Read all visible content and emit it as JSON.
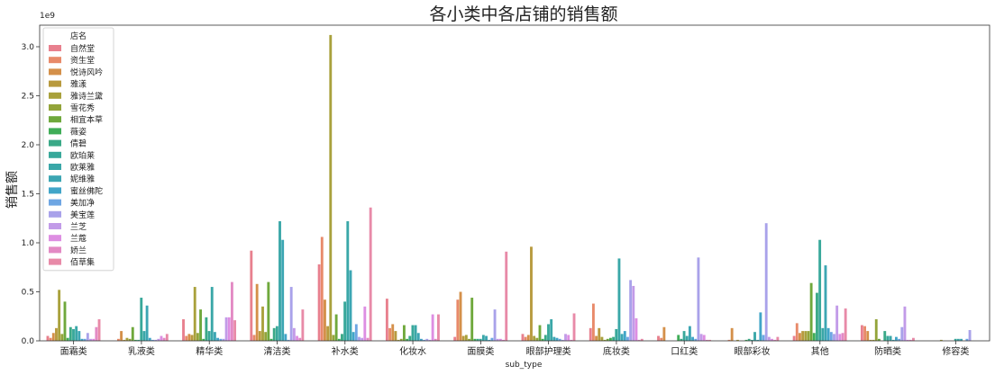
{
  "chart_data": {
    "type": "bar",
    "title": "各小类中各店铺的销售额",
    "xlabel": "sub_type",
    "ylabel": "销售额",
    "y_multiplier_label": "1e9",
    "ylim": [
      0,
      3.22
    ],
    "yticks": [
      0.0,
      0.5,
      1.0,
      1.5,
      2.0,
      2.5,
      3.0
    ],
    "ytick_labels": [
      "0.0",
      "0.5",
      "1.0",
      "1.5",
      "2.0",
      "2.5",
      "3.0"
    ],
    "grid": false,
    "legend_position": "top-left",
    "legend_title": "店名",
    "categories": [
      "面霜类",
      "乳液类",
      "精华类",
      "清洁类",
      "补水类",
      "化妆水",
      "面膜类",
      "眼部护理类",
      "底妆类",
      "口红类",
      "眼部彩妆",
      "其他",
      "防晒类",
      "修容类"
    ],
    "series": [
      {
        "name": "自然堂",
        "color": "#e8808e",
        "values": [
          0.05,
          0,
          0.22,
          0.92,
          0.78,
          0.43,
          0.04,
          0.07,
          0.13,
          0.05,
          0,
          0.05,
          0.16,
          0
        ]
      },
      {
        "name": "资生堂",
        "color": "#e88a6a",
        "values": [
          0.03,
          0.02,
          0.05,
          0.06,
          1.06,
          0.13,
          0.42,
          0.04,
          0.38,
          0.03,
          0.01,
          0.18,
          0.15,
          0
        ]
      },
      {
        "name": "悦诗风吟",
        "color": "#d4904a",
        "values": [
          0.08,
          0.1,
          0.07,
          0.58,
          0.42,
          0.17,
          0.5,
          0.06,
          0.05,
          0.14,
          0.13,
          0.08,
          0.1,
          0
        ]
      },
      {
        "name": "雅漾",
        "color": "#b89a3e",
        "values": [
          0.13,
          0.01,
          0.06,
          0.1,
          0.15,
          0.1,
          0.05,
          0.96,
          0.13,
          0,
          0,
          0.1,
          0.01,
          0
        ]
      },
      {
        "name": "雅诗兰黛",
        "color": "#a9a13c",
        "values": [
          0.52,
          0.03,
          0.55,
          0.35,
          3.12,
          0.01,
          0.06,
          0.05,
          0.04,
          0,
          0.01,
          0.1,
          0.01,
          0.01
        ]
      },
      {
        "name": "雪花秀",
        "color": "#93a43a",
        "values": [
          0.07,
          0.02,
          0.08,
          0.09,
          0.06,
          0.02,
          0.02,
          0.03,
          0.01,
          0,
          0,
          0.1,
          0.22,
          0
        ]
      },
      {
        "name": "相宜本草",
        "color": "#6fa83c",
        "values": [
          0.4,
          0.14,
          0.32,
          0.6,
          0.27,
          0.16,
          0.44,
          0.16,
          0.02,
          0,
          0,
          0.59,
          0.02,
          0
        ]
      },
      {
        "name": "薇姿",
        "color": "#3fad57",
        "values": [
          0.03,
          0.01,
          0.02,
          0.02,
          0.02,
          0.02,
          0.02,
          0.02,
          0.03,
          0.06,
          0.01,
          0.08,
          0,
          0
        ]
      },
      {
        "name": "倩碧",
        "color": "#3aa987",
        "values": [
          0.14,
          0.01,
          0.24,
          0.13,
          0.07,
          0.05,
          0.02,
          0.06,
          0.04,
          0.02,
          0.02,
          0.49,
          0.1,
          0
        ]
      },
      {
        "name": "欧珀莱",
        "color": "#38a89a",
        "values": [
          0.12,
          0.44,
          0.1,
          0.15,
          0.4,
          0.16,
          0.02,
          0.17,
          0.12,
          0.1,
          0.01,
          1.03,
          0.05,
          0.02
        ]
      },
      {
        "name": "欧莱雅",
        "color": "#3aa7a8",
        "values": [
          0.15,
          0.1,
          0.55,
          1.22,
          1.22,
          0.16,
          0.06,
          0.22,
          0.84,
          0.05,
          0.09,
          0.13,
          0.05,
          0.02
        ]
      },
      {
        "name": "妮维雅",
        "color": "#3ca6b3",
        "values": [
          0.1,
          0.36,
          0.09,
          1.03,
          0.72,
          0.08,
          0.05,
          0.04,
          0.07,
          0.15,
          0.01,
          0.77,
          0.01,
          0.02
        ]
      },
      {
        "name": "蜜丝佛陀",
        "color": "#41a5c8",
        "values": [
          0.02,
          0.03,
          0.03,
          0.07,
          0.09,
          0.02,
          0.01,
          0.03,
          0.1,
          0.04,
          0.29,
          0.13,
          0.04,
          0
        ]
      },
      {
        "name": "美加净",
        "color": "#6ea6e3",
        "values": [
          0.02,
          0.01,
          0.02,
          0.01,
          0.17,
          0.01,
          0.03,
          0.02,
          0.04,
          0.02,
          0.06,
          0.09,
          0.02,
          0.02
        ]
      },
      {
        "name": "美宝莲",
        "color": "#a9a2ea",
        "values": [
          0.08,
          0.01,
          0.02,
          0.55,
          0.04,
          0.02,
          0.32,
          0.01,
          0.62,
          0.85,
          1.2,
          0.07,
          0.14,
          0.11
        ]
      },
      {
        "name": "兰芝",
        "color": "#c29be8",
        "values": [
          0.02,
          0.02,
          0.24,
          0.13,
          0.03,
          0.01,
          0.02,
          0.07,
          0.56,
          0.07,
          0.04,
          0.36,
          0.35,
          0
        ]
      },
      {
        "name": "兰蔻",
        "color": "#dd8ee2",
        "values": [
          0.02,
          0.05,
          0.24,
          0.05,
          0.35,
          0.27,
          0.02,
          0.06,
          0.23,
          0.06,
          0.02,
          0.07,
          0.01,
          0
        ]
      },
      {
        "name": "娇兰",
        "color": "#e38ac4",
        "values": [
          0.14,
          0.03,
          0.6,
          0.03,
          0.03,
          0.02,
          0.01,
          0.01,
          0.01,
          0.01,
          0.01,
          0.08,
          0.01,
          0
        ]
      },
      {
        "name": "佰草集",
        "color": "#e88aa8",
        "values": [
          0.22,
          0.07,
          0.21,
          0.32,
          1.36,
          0.27,
          0.91,
          0.28,
          0.02,
          0.01,
          0.04,
          0.33,
          0.03,
          0
        ]
      }
    ]
  }
}
